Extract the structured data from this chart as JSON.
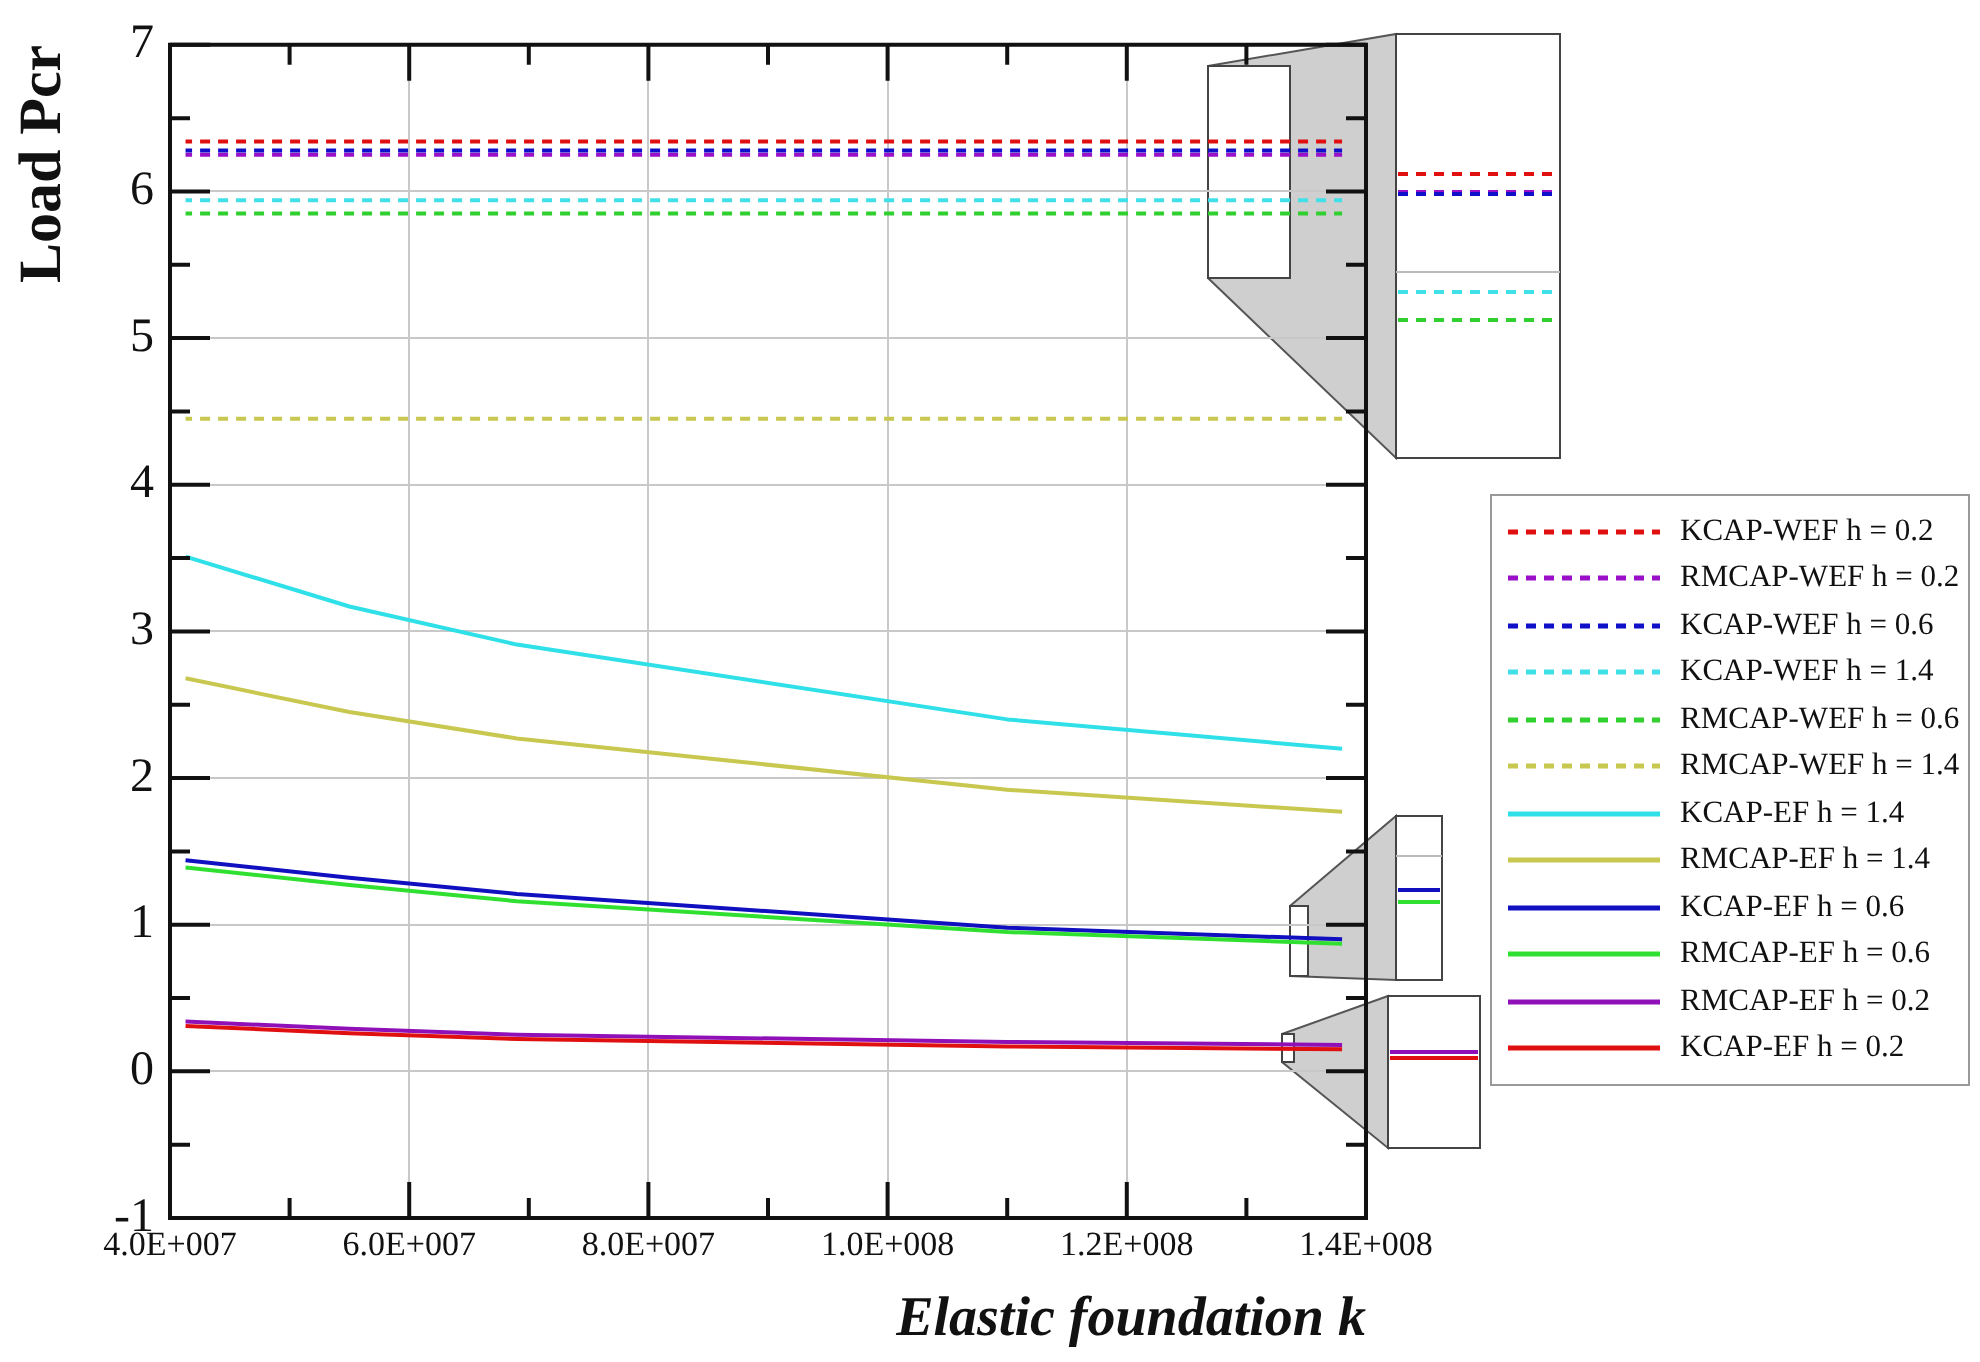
{
  "chart_data": {
    "type": "line",
    "xlabel": "Elastic foundation k",
    "ylabel": "Load Pcr",
    "x": [
      41300000,
      55000000,
      69000000,
      110000000,
      138000000
    ],
    "xlim": [
      40000000,
      140000000
    ],
    "xticks": [
      {
        "value": 40000000,
        "label": "4.0E+007"
      },
      {
        "value": 50000000,
        "label": null
      },
      {
        "value": 60000000,
        "label": "6.0E+007"
      },
      {
        "value": 70000000,
        "label": null
      },
      {
        "value": 80000000,
        "label": "8.0E+007"
      },
      {
        "value": 90000000,
        "label": null
      },
      {
        "value": 100000000,
        "label": "1.0E+008"
      },
      {
        "value": 110000000,
        "label": null
      },
      {
        "value": 120000000,
        "label": "1.2E+008"
      },
      {
        "value": 130000000,
        "label": null
      },
      {
        "value": 140000000,
        "label": "1.4E+008"
      }
    ],
    "ylim": [
      -1,
      7
    ],
    "yticks": [
      -1,
      {
        "value": -0.5,
        "label": null
      },
      0,
      {
        "value": 0.5,
        "label": null
      },
      1,
      {
        "value": 1.5,
        "label": null
      },
      2,
      {
        "value": 2.5,
        "label": null
      },
      3,
      {
        "value": 3.5,
        "label": null
      },
      4,
      {
        "value": 4.5,
        "label": null
      },
      5,
      {
        "value": 5.5,
        "label": null
      },
      6,
      {
        "value": 6.5,
        "label": null
      },
      7
    ],
    "grid": true,
    "legend": "right",
    "marker": "none",
    "series": [
      {
        "name": "KCAP-WEF h = 0.2",
        "color": "#e01010",
        "line_style": "dashed",
        "values": [
          6.34,
          6.34,
          6.34,
          6.34,
          6.34
        ]
      },
      {
        "name": "RMCAP-WEF h = 0.2",
        "color": "#9a10c8",
        "line_style": "dashed",
        "values": [
          6.25,
          6.25,
          6.25,
          6.25,
          6.25
        ]
      },
      {
        "name": "KCAP-WEF h = 0.6",
        "color": "#1010c8",
        "line_style": "dashed",
        "values": [
          6.28,
          6.28,
          6.28,
          6.28,
          6.28
        ]
      },
      {
        "name": "KCAP-WEF h = 1.4",
        "color": "#40e0e8",
        "line_style": "dashed",
        "values": [
          5.94,
          5.94,
          5.94,
          5.94,
          5.94
        ]
      },
      {
        "name": "RMCAP-WEF h = 0.6",
        "color": "#30d030",
        "line_style": "dashed",
        "values": [
          5.85,
          5.85,
          5.85,
          5.85,
          5.85
        ]
      },
      {
        "name": "RMCAP-WEF h = 1.4",
        "color": "#c8c850",
        "line_style": "dashed",
        "values": [
          4.45,
          4.45,
          4.45,
          4.45,
          4.45
        ]
      },
      {
        "name": "KCAP-EF h = 1.4",
        "color": "#30e0e8",
        "line_style": "solid",
        "values": [
          3.51,
          3.17,
          2.91,
          2.4,
          2.2
        ]
      },
      {
        "name": "RMCAP-EF h = 1.4",
        "color": "#c8c850",
        "line_style": "solid",
        "values": [
          2.68,
          2.45,
          2.27,
          1.92,
          1.77
        ]
      },
      {
        "name": "KCAP-EF h = 0.6",
        "color": "#1010c0",
        "line_style": "solid",
        "values": [
          1.44,
          1.32,
          1.21,
          0.98,
          0.9
        ]
      },
      {
        "name": "RMCAP-EF h = 0.6",
        "color": "#30e030",
        "line_style": "solid",
        "values": [
          1.39,
          1.27,
          1.16,
          0.95,
          0.87
        ]
      },
      {
        "name": "RMCAP-EF h = 0.2",
        "color": "#9010b8",
        "line_style": "solid",
        "values": [
          0.34,
          0.29,
          0.25,
          0.2,
          0.18
        ]
      },
      {
        "name": "KCAP-EF h = 0.2",
        "color": "#e01010",
        "line_style": "solid",
        "values": [
          0.31,
          0.26,
          0.22,
          0.17,
          0.15
        ]
      }
    ]
  }
}
